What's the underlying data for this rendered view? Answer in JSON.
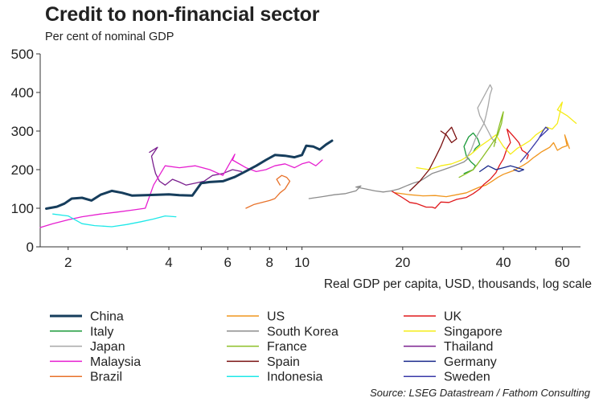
{
  "title": "Credit to non-financial sector",
  "subtitle": "Per cent of nominal GDP",
  "source": "Source: LSEG Datastream / Fathom Consulting",
  "chart_data": {
    "type": "line",
    "title": "Credit to non-financial sector",
    "ylabel": "Per cent of nominal GDP",
    "xlabel": "Real GDP per capita, USD, thousands, log scale",
    "xscale": "log",
    "xlim": [
      1.65,
      68
    ],
    "ylim": [
      0,
      500
    ],
    "yticks": [
      0,
      100,
      200,
      300,
      400,
      500
    ],
    "xticks": [
      2,
      4,
      6,
      8,
      10,
      20,
      40,
      60
    ],
    "grid": false,
    "legend_position": "bottom",
    "series": [
      {
        "name": "China",
        "color": "#163d5c",
        "width": 3,
        "x": [
          1.72,
          1.85,
          1.95,
          2.05,
          2.2,
          2.35,
          2.5,
          2.7,
          2.9,
          3.1,
          3.4,
          3.7,
          4.0,
          4.3,
          4.7,
          5.0,
          5.3,
          5.8,
          6.3,
          6.8,
          7.3,
          7.8,
          8.3,
          8.9,
          9.5,
          10.0,
          10.3,
          10.8,
          11.3,
          11.8,
          12.3
        ],
        "y": [
          99,
          104,
          112,
          125,
          127,
          120,
          135,
          145,
          140,
          133,
          134,
          135,
          136,
          134,
          133,
          165,
          168,
          170,
          181,
          196,
          210,
          225,
          238,
          236,
          232,
          238,
          262,
          260,
          252,
          265,
          275
        ]
      },
      {
        "name": "US",
        "color": "#f0961e",
        "width": 1.3,
        "x": [
          19.0,
          21.0,
          23.0,
          25.0,
          27.0,
          29.0,
          31.0,
          32.5,
          34.0,
          35.5,
          37.0,
          38.5,
          40.0,
          41.5,
          43.0,
          44.5,
          46.0,
          47.5,
          49.0,
          50.5,
          52.0,
          53.5,
          55.0,
          56.5,
          58.0,
          60.0,
          62.0,
          61.0,
          63.0
        ],
        "y": [
          140,
          135,
          132,
          133,
          130,
          135,
          140,
          148,
          155,
          160,
          170,
          180,
          188,
          193,
          198,
          205,
          212,
          220,
          230,
          238,
          246,
          252,
          258,
          270,
          250,
          258,
          262,
          290,
          255
        ]
      },
      {
        "name": "UK",
        "color": "#e0181b",
        "width": 1.3,
        "x": [
          18.5,
          20.0,
          21.0,
          22.0,
          23.5,
          24.5,
          25.0,
          26.0,
          27.5,
          29.0,
          31.0,
          32.5,
          34.0,
          35.0,
          36.5,
          38.0,
          39.0,
          40.0,
          41.0,
          42.0,
          41.0,
          43.0,
          44.5,
          45.5,
          46.5,
          47.5,
          47.0
        ],
        "y": [
          145,
          127,
          115,
          112,
          103,
          103,
          100,
          116,
          115,
          123,
          128,
          138,
          150,
          162,
          175,
          192,
          212,
          228,
          255,
          270,
          305,
          285,
          270,
          250,
          245,
          238,
          228
        ]
      },
      {
        "name": "Italy",
        "color": "#1b9a3a",
        "width": 1.3,
        "x": [
          30.5,
          31.5,
          32.5,
          33.0,
          32.0,
          31.0,
          30.5,
          31.5,
          32.5,
          33.5,
          34.0,
          33.0,
          32.5
        ],
        "y": [
          190,
          195,
          200,
          210,
          220,
          235,
          260,
          285,
          295,
          280,
          265,
          255,
          245
        ]
      },
      {
        "name": "South Korea",
        "color": "#8c8c8c",
        "width": 1.3,
        "x": [
          10.5,
          11.5,
          12.5,
          13.5,
          14.5,
          15.0,
          14.5,
          15.5,
          16.5,
          17.5,
          18.5,
          19.5,
          20.5,
          21.5,
          22.5,
          23.5,
          24.5,
          25.5,
          26.5,
          27.5,
          28.5,
          29.5,
          30.5,
          31.5
        ],
        "y": [
          125,
          130,
          135,
          138,
          145,
          158,
          155,
          150,
          145,
          142,
          145,
          150,
          158,
          165,
          170,
          180,
          190,
          195,
          200,
          205,
          210,
          215,
          220,
          230
        ]
      },
      {
        "name": "Singapore",
        "color": "#f5ec18",
        "width": 1.3,
        "x": [
          22.0,
          24.0,
          26.0,
          28.0,
          30.0,
          32.0,
          34.0,
          36.0,
          38.0,
          40.0,
          42.0,
          44.0,
          46.0,
          48.0,
          50.0,
          52.0,
          54.0,
          56.0,
          58.0,
          60.0,
          58.0,
          62.0,
          66.0
        ],
        "y": [
          205,
          200,
          210,
          215,
          225,
          240,
          260,
          275,
          290,
          260,
          240,
          255,
          265,
          275,
          290,
          300,
          310,
          305,
          320,
          375,
          355,
          340,
          320
        ]
      },
      {
        "name": "Japan",
        "color": "#a7a7a7",
        "width": 1.3,
        "x": [
          31.0,
          32.0,
          33.0,
          34.0,
          35.0,
          35.5,
          36.0,
          36.5,
          37.0,
          36.5,
          35.5,
          34.5,
          33.5,
          34.0,
          35.0,
          36.0,
          37.0,
          38.0
        ],
        "y": [
          230,
          250,
          280,
          300,
          320,
          340,
          365,
          395,
          410,
          420,
          400,
          380,
          360,
          340,
          320,
          300,
          280,
          270
        ]
      },
      {
        "name": "France",
        "color": "#8cbf26",
        "width": 1.3,
        "x": [
          29.5,
          31.0,
          32.5,
          33.5,
          34.5,
          35.5,
          36.5,
          37.5,
          38.5,
          39.5,
          40.0,
          39.5,
          38.5,
          37.5
        ],
        "y": [
          180,
          190,
          200,
          215,
          230,
          245,
          260,
          275,
          290,
          320,
          350,
          335,
          300,
          260
        ]
      },
      {
        "name": "Thailand",
        "color": "#7a1f8e",
        "width": 1.3,
        "x": [
          3.5,
          3.7,
          3.55,
          3.6,
          3.65,
          3.75,
          3.9,
          4.1,
          4.3,
          4.5,
          4.8,
          5.1,
          5.4,
          5.8,
          6.2,
          6.6
        ],
        "y": [
          245,
          258,
          235,
          210,
          190,
          170,
          160,
          175,
          168,
          160,
          165,
          170,
          185,
          190,
          200,
          195
        ]
      },
      {
        "name": "Malaysia",
        "color": "#e61fd0",
        "width": 1.3,
        "x": [
          1.65,
          1.8,
          2.0,
          2.2,
          2.5,
          2.8,
          3.1,
          3.4,
          3.6,
          3.9,
          4.3,
          4.8,
          5.3,
          5.8,
          6.3,
          6.2,
          6.8,
          7.3,
          7.8,
          8.3,
          8.9,
          9.5,
          10.0,
          10.5,
          11.0,
          11.5
        ],
        "y": [
          50,
          60,
          70,
          78,
          85,
          90,
          95,
          100,
          160,
          210,
          205,
          210,
          200,
          185,
          240,
          225,
          205,
          195,
          200,
          210,
          215,
          205,
          215,
          220,
          210,
          225
        ]
      },
      {
        "name": "Spain",
        "color": "#7a1010",
        "width": 1.3,
        "x": [
          21.0,
          22.5,
          24.0,
          25.0,
          26.0,
          27.0,
          28.0,
          29.0,
          28.0,
          27.0,
          26.0
        ],
        "y": [
          145,
          170,
          200,
          230,
          260,
          295,
          310,
          280,
          270,
          290,
          300
        ]
      },
      {
        "name": "Germany",
        "color": "#1a2a8c",
        "width": 1.3,
        "x": [
          34.0,
          36.0,
          38.0,
          40.0,
          42.0,
          44.0,
          46.0,
          44.5,
          43.0
        ],
        "y": [
          195,
          210,
          200,
          205,
          210,
          205,
          200,
          195,
          200
        ]
      },
      {
        "name": "Brazil",
        "color": "#e8722a",
        "width": 1.3,
        "x": [
          6.8,
          7.2,
          7.6,
          8.0,
          8.3,
          8.6,
          8.9,
          9.2,
          9.0,
          8.7,
          8.4,
          8.6
        ],
        "y": [
          100,
          110,
          115,
          120,
          125,
          140,
          150,
          170,
          180,
          185,
          175,
          160
        ]
      },
      {
        "name": "Indonesia",
        "color": "#1ee8e8",
        "width": 1.3,
        "x": [
          1.8,
          2.0,
          2.2,
          2.4,
          2.7,
          3.0,
          3.3,
          3.6,
          3.9,
          4.2
        ],
        "y": [
          85,
          80,
          60,
          55,
          52,
          58,
          65,
          72,
          80,
          78
        ]
      },
      {
        "name": "Sweden",
        "color": "#3a3aa8",
        "width": 1.3,
        "x": [
          45.0,
          46.5,
          48.0,
          49.5,
          51.0,
          52.5,
          53.5,
          54.5,
          53.0,
          51.5
        ],
        "y": [
          220,
          235,
          250,
          265,
          280,
          300,
          310,
          305,
          295,
          285
        ]
      }
    ]
  }
}
